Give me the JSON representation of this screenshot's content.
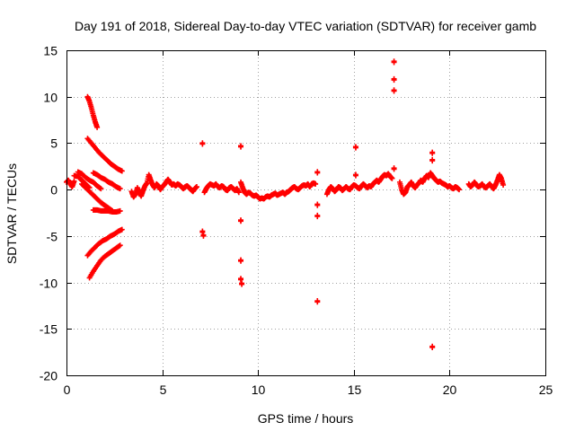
{
  "chart_data": {
    "type": "scatter",
    "title": "Day 191 of 2018, Sidereal Day-to-day VTEC variation (SDTVAR) for receiver gamb",
    "xlabel": "GPS time / hours",
    "ylabel": "SDTVAR / TECUs",
    "xlim": [
      0,
      25
    ],
    "ylim": [
      -20,
      15
    ],
    "xticks": [
      0,
      5,
      10,
      15,
      20,
      25
    ],
    "yticks": [
      -20,
      -15,
      -10,
      -5,
      0,
      5,
      10,
      15
    ],
    "grid": true,
    "marker": "+",
    "series": [
      {
        "name": "SDTVAR",
        "color": "#ff0000",
        "segments": [
          [
            [
              0.0,
              0.8
            ],
            [
              0.1,
              1.0
            ],
            [
              0.2,
              0.6
            ],
            [
              0.3,
              0.3
            ],
            [
              0.4,
              0.9
            ]
          ],
          [
            [
              0.4,
              1.5
            ],
            [
              0.6,
              1.4
            ],
            [
              0.8,
              1.0
            ],
            [
              1.0,
              0.6
            ],
            [
              1.2,
              0.2
            ]
          ],
          [
            [
              0.6,
              1.9
            ],
            [
              0.8,
              1.7
            ],
            [
              1.0,
              1.3
            ],
            [
              1.2,
              1.0
            ],
            [
              1.4,
              0.8
            ],
            [
              1.6,
              0.4
            ],
            [
              1.8,
              0.1
            ]
          ],
          [
            [
              0.8,
              0.6
            ],
            [
              1.0,
              0.2
            ],
            [
              1.2,
              -0.2
            ],
            [
              1.4,
              -0.6
            ],
            [
              1.6,
              -1.0
            ],
            [
              1.8,
              -1.4
            ],
            [
              2.0,
              -1.7
            ],
            [
              2.2,
              -2.0
            ],
            [
              2.4,
              -2.3
            ]
          ],
          [
            [
              1.1,
              10.0
            ],
            [
              1.2,
              9.5
            ],
            [
              1.3,
              8.8
            ],
            [
              1.4,
              8.0
            ],
            [
              1.5,
              7.3
            ],
            [
              1.6,
              6.7
            ]
          ],
          [
            [
              1.1,
              5.5
            ],
            [
              1.3,
              5.0
            ],
            [
              1.5,
              4.5
            ],
            [
              1.7,
              4.0
            ],
            [
              1.9,
              3.6
            ],
            [
              2.1,
              3.2
            ],
            [
              2.3,
              2.8
            ],
            [
              2.5,
              2.5
            ],
            [
              2.7,
              2.2
            ],
            [
              2.9,
              2.0
            ]
          ],
          [
            [
              1.4,
              1.8
            ],
            [
              1.6,
              1.6
            ],
            [
              1.8,
              1.3
            ],
            [
              2.0,
              1.1
            ],
            [
              2.2,
              0.8
            ],
            [
              2.4,
              0.6
            ],
            [
              2.6,
              0.3
            ],
            [
              2.8,
              0.1
            ]
          ],
          [
            [
              1.4,
              -2.2
            ],
            [
              1.6,
              -2.2
            ],
            [
              1.8,
              -2.3
            ],
            [
              2.0,
              -2.3
            ],
            [
              2.2,
              -2.3
            ],
            [
              2.4,
              -2.4
            ],
            [
              2.6,
              -2.4
            ],
            [
              2.8,
              -2.3
            ]
          ],
          [
            [
              1.1,
              -7.1
            ],
            [
              1.3,
              -6.6
            ],
            [
              1.5,
              -6.2
            ],
            [
              1.7,
              -5.8
            ],
            [
              1.9,
              -5.5
            ],
            [
              2.1,
              -5.3
            ],
            [
              2.3,
              -5.0
            ],
            [
              2.5,
              -4.8
            ],
            [
              2.7,
              -4.5
            ],
            [
              2.9,
              -4.3
            ]
          ],
          [
            [
              1.2,
              -9.5
            ],
            [
              1.4,
              -8.8
            ],
            [
              1.6,
              -8.2
            ],
            [
              1.8,
              -7.6
            ],
            [
              2.0,
              -7.2
            ],
            [
              2.2,
              -6.9
            ],
            [
              2.4,
              -6.6
            ],
            [
              2.6,
              -6.3
            ],
            [
              2.8,
              -6.0
            ]
          ],
          [
            [
              3.4,
              -0.2
            ],
            [
              3.5,
              -0.8
            ],
            [
              3.6,
              -0.5
            ],
            [
              3.7,
              0.2
            ],
            [
              3.8,
              -0.3
            ],
            [
              3.9,
              -0.7
            ],
            [
              4.0,
              -0.1
            ],
            [
              4.1,
              0.4
            ],
            [
              4.2,
              0.7
            ],
            [
              4.3,
              1.6
            ],
            [
              4.4,
              1.0
            ],
            [
              4.5,
              0.5
            ],
            [
              4.6,
              0.2
            ],
            [
              4.7,
              0.6
            ],
            [
              4.8,
              0.4
            ],
            [
              4.9,
              0.0
            ],
            [
              5.0,
              0.3
            ],
            [
              5.1,
              0.5
            ],
            [
              5.2,
              0.8
            ],
            [
              5.3,
              1.1
            ],
            [
              5.4,
              0.8
            ],
            [
              5.5,
              0.5
            ],
            [
              5.6,
              0.6
            ],
            [
              5.7,
              0.4
            ],
            [
              5.8,
              0.6
            ],
            [
              5.9,
              0.5
            ],
            [
              6.0,
              0.3
            ],
            [
              6.1,
              0.1
            ],
            [
              6.2,
              0.3
            ],
            [
              6.3,
              0.4
            ],
            [
              6.4,
              0.2
            ],
            [
              6.5,
              0.0
            ],
            [
              6.6,
              -0.2
            ],
            [
              6.7,
              0.1
            ],
            [
              6.8,
              0.3
            ]
          ],
          [
            [
              7.2,
              -0.3
            ],
            [
              7.3,
              0.1
            ],
            [
              7.4,
              0.4
            ],
            [
              7.5,
              0.6
            ],
            [
              7.6,
              0.5
            ],
            [
              7.7,
              0.4
            ],
            [
              7.8,
              0.6
            ],
            [
              7.9,
              0.3
            ],
            [
              8.0,
              0.2
            ],
            [
              8.1,
              0.4
            ],
            [
              8.2,
              0.3
            ],
            [
              8.3,
              0.0
            ],
            [
              8.4,
              -0.1
            ],
            [
              8.5,
              0.2
            ],
            [
              8.6,
              0.3
            ],
            [
              8.7,
              0.1
            ],
            [
              8.8,
              -0.1
            ],
            [
              8.9,
              0.1
            ],
            [
              9.0,
              -0.3
            ]
          ],
          [
            [
              9.1,
              0.8
            ],
            [
              9.2,
              0.2
            ],
            [
              9.3,
              -0.3
            ],
            [
              9.4,
              -0.5
            ],
            [
              9.5,
              -0.3
            ],
            [
              9.6,
              -0.4
            ],
            [
              9.7,
              -0.6
            ],
            [
              9.8,
              -0.7
            ],
            [
              9.9,
              -0.6
            ],
            [
              10.0,
              -0.8
            ],
            [
              10.1,
              -1.0
            ],
            [
              10.2,
              -0.9
            ],
            [
              10.3,
              -1.0
            ],
            [
              10.4,
              -0.8
            ],
            [
              10.5,
              -0.7
            ],
            [
              10.6,
              -0.8
            ],
            [
              10.7,
              -0.6
            ],
            [
              10.8,
              -0.5
            ],
            [
              10.9,
              -0.4
            ],
            [
              11.0,
              -0.6
            ],
            [
              11.1,
              -0.5
            ],
            [
              11.2,
              -0.4
            ],
            [
              11.3,
              -0.3
            ],
            [
              11.4,
              -0.5
            ],
            [
              11.5,
              -0.3
            ],
            [
              11.6,
              -0.2
            ],
            [
              11.7,
              0.0
            ],
            [
              11.8,
              0.2
            ],
            [
              11.9,
              0.3
            ],
            [
              12.0,
              0.1
            ],
            [
              12.1,
              0.0
            ],
            [
              12.2,
              0.2
            ],
            [
              12.3,
              0.4
            ],
            [
              12.4,
              0.5
            ],
            [
              12.5,
              0.4
            ],
            [
              12.6,
              0.6
            ],
            [
              12.7,
              0.3
            ],
            [
              12.8,
              0.6
            ],
            [
              12.9,
              0.7
            ],
            [
              13.0,
              0.6
            ]
          ],
          [
            [
              13.6,
              -0.5
            ],
            [
              13.7,
              0.0
            ],
            [
              13.8,
              0.3
            ],
            [
              13.9,
              0.1
            ],
            [
              14.0,
              -0.2
            ],
            [
              14.1,
              0.0
            ],
            [
              14.2,
              0.3
            ],
            [
              14.3,
              0.2
            ],
            [
              14.4,
              -0.1
            ],
            [
              14.5,
              0.1
            ],
            [
              14.6,
              0.3
            ],
            [
              14.7,
              0.1
            ],
            [
              14.8,
              0.0
            ],
            [
              14.9,
              0.3
            ],
            [
              15.0,
              0.5
            ],
            [
              15.1,
              0.4
            ],
            [
              15.2,
              0.2
            ],
            [
              15.3,
              0.1
            ],
            [
              15.4,
              0.4
            ],
            [
              15.5,
              0.6
            ],
            [
              15.6,
              0.4
            ],
            [
              15.7,
              0.2
            ],
            [
              15.8,
              0.4
            ],
            [
              15.9,
              0.3
            ],
            [
              16.0,
              0.6
            ],
            [
              16.1,
              0.8
            ],
            [
              16.2,
              1.0
            ],
            [
              16.3,
              0.8
            ],
            [
              16.4,
              1.1
            ],
            [
              16.5,
              1.4
            ],
            [
              16.6,
              1.6
            ],
            [
              16.7,
              1.5
            ],
            [
              16.8,
              1.7
            ],
            [
              16.9,
              1.4
            ],
            [
              17.0,
              1.2
            ]
          ],
          [
            [
              17.4,
              0.8
            ],
            [
              17.5,
              0.0
            ],
            [
              17.6,
              -0.5
            ],
            [
              17.7,
              -0.3
            ],
            [
              17.8,
              0.3
            ],
            [
              17.9,
              0.5
            ],
            [
              18.0,
              0.8
            ],
            [
              18.1,
              0.4
            ],
            [
              18.2,
              0.2
            ],
            [
              18.3,
              0.5
            ],
            [
              18.4,
              0.7
            ],
            [
              18.5,
              1.0
            ],
            [
              18.6,
              0.8
            ],
            [
              18.7,
              1.2
            ],
            [
              18.8,
              1.5
            ],
            [
              18.9,
              1.3
            ],
            [
              19.0,
              1.8
            ],
            [
              19.1,
              1.5
            ],
            [
              19.2,
              1.2
            ],
            [
              19.3,
              1.0
            ],
            [
              19.4,
              0.8
            ],
            [
              19.5,
              0.9
            ],
            [
              19.6,
              0.7
            ],
            [
              19.7,
              0.6
            ],
            [
              19.8,
              0.5
            ],
            [
              19.9,
              0.3
            ],
            [
              20.0,
              0.4
            ],
            [
              20.1,
              0.2
            ],
            [
              20.2,
              0.1
            ],
            [
              20.3,
              0.3
            ],
            [
              20.4,
              0.2
            ],
            [
              20.5,
              0.0
            ]
          ],
          [
            [
              21.0,
              0.6
            ],
            [
              21.1,
              0.3
            ],
            [
              21.2,
              0.5
            ],
            [
              21.3,
              0.8
            ],
            [
              21.4,
              0.5
            ],
            [
              21.5,
              0.3
            ],
            [
              21.6,
              0.4
            ],
            [
              21.7,
              0.6
            ],
            [
              21.8,
              0.3
            ],
            [
              21.9,
              0.2
            ],
            [
              22.0,
              0.4
            ],
            [
              22.1,
              0.6
            ],
            [
              22.2,
              0.3
            ],
            [
              22.3,
              0.1
            ],
            [
              22.4,
              0.5
            ],
            [
              22.5,
              1.0
            ],
            [
              22.6,
              1.6
            ],
            [
              22.7,
              1.2
            ],
            [
              22.8,
              0.5
            ]
          ]
        ],
        "outliers": [
          [
            7.1,
            4.9
          ],
          [
            7.1,
            -4.6
          ],
          [
            7.15,
            -5.0
          ],
          [
            9.1,
            4.6
          ],
          [
            9.1,
            -3.4
          ],
          [
            9.1,
            -7.7
          ],
          [
            9.1,
            -9.7
          ],
          [
            9.15,
            -10.2
          ],
          [
            13.1,
            1.8
          ],
          [
            13.1,
            -1.7
          ],
          [
            13.1,
            -2.9
          ],
          [
            13.1,
            -12.1
          ],
          [
            15.1,
            4.5
          ],
          [
            15.1,
            1.5
          ],
          [
            17.1,
            13.7
          ],
          [
            17.1,
            11.8
          ],
          [
            17.1,
            10.6
          ],
          [
            17.1,
            2.2
          ],
          [
            19.1,
            3.9
          ],
          [
            19.1,
            3.1
          ],
          [
            19.1,
            -17.0
          ]
        ]
      }
    ]
  }
}
